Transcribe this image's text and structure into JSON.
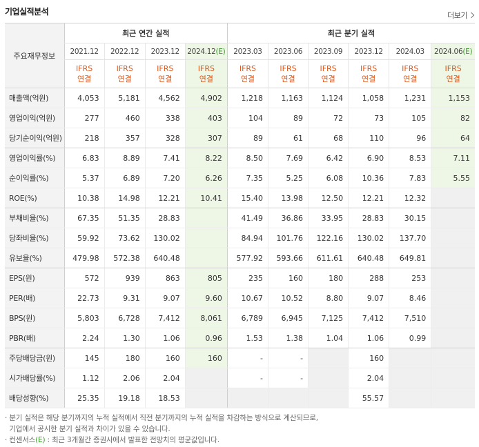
{
  "title": "기업실적분석",
  "more_label": "더보기",
  "row_header_label": "주요재무정보",
  "group_annual": "최근 연간 실적",
  "group_quarter": "최근 분기 실적",
  "periods": [
    "2021.12",
    "2022.12",
    "2023.12",
    "2024.12",
    "2023.03",
    "2023.06",
    "2023.09",
    "2023.12",
    "2024.03",
    "2024.06"
  ],
  "estimate_suffix": "(E)",
  "ifrs_line1": "IFRS",
  "ifrs_line2": "연결",
  "rows": [
    {
      "label": "매출액(억원)",
      "values": [
        "4,053",
        "5,181",
        "4,562",
        "4,902",
        "1,218",
        "1,163",
        "1,124",
        "1,058",
        "1,231",
        "1,153"
      ]
    },
    {
      "label": "영업이익(억원)",
      "values": [
        "277",
        "460",
        "338",
        "403",
        "104",
        "89",
        "72",
        "73",
        "105",
        "82"
      ]
    },
    {
      "label": "당기순이익(억원)",
      "values": [
        "218",
        "357",
        "328",
        "307",
        "89",
        "61",
        "68",
        "110",
        "96",
        "64"
      ]
    },
    {
      "label": "영업이익률(%)",
      "values": [
        "6.83",
        "8.89",
        "7.41",
        "8.22",
        "8.50",
        "7.69",
        "6.42",
        "6.90",
        "8.53",
        "7.11"
      ]
    },
    {
      "label": "순이익률(%)",
      "values": [
        "5.37",
        "6.89",
        "7.20",
        "6.26",
        "7.35",
        "5.25",
        "6.08",
        "10.36",
        "7.83",
        "5.55"
      ]
    },
    {
      "label": "ROE(%)",
      "values": [
        "10.38",
        "14.98",
        "12.21",
        "10.41",
        "15.40",
        "13.98",
        "12.50",
        "12.21",
        "12.32",
        ""
      ]
    },
    {
      "label": "부채비율(%)",
      "values": [
        "67.35",
        "51.35",
        "28.83",
        "",
        "41.49",
        "36.86",
        "33.95",
        "28.83",
        "30.15",
        ""
      ]
    },
    {
      "label": "당좌비율(%)",
      "values": [
        "59.92",
        "73.62",
        "130.02",
        "",
        "84.94",
        "101.76",
        "122.16",
        "130.02",
        "137.70",
        ""
      ]
    },
    {
      "label": "유보율(%)",
      "values": [
        "479.98",
        "572.38",
        "640.48",
        "",
        "577.92",
        "593.66",
        "611.61",
        "640.48",
        "649.81",
        ""
      ]
    },
    {
      "label": "EPS(원)",
      "values": [
        "572",
        "939",
        "863",
        "805",
        "235",
        "160",
        "180",
        "288",
        "253",
        ""
      ]
    },
    {
      "label": "PER(배)",
      "values": [
        "22.73",
        "9.31",
        "9.07",
        "9.60",
        "10.67",
        "10.52",
        "8.80",
        "9.07",
        "8.46",
        ""
      ]
    },
    {
      "label": "BPS(원)",
      "values": [
        "5,803",
        "6,728",
        "7,412",
        "8,061",
        "6,789",
        "6,945",
        "7,125",
        "7,412",
        "7,510",
        ""
      ]
    },
    {
      "label": "PBR(배)",
      "values": [
        "2.24",
        "1.30",
        "1.06",
        "0.96",
        "1.53",
        "1.38",
        "1.04",
        "1.06",
        "0.99",
        ""
      ]
    },
    {
      "label": "주당배당금(원)",
      "values": [
        "145",
        "180",
        "160",
        "160",
        "-",
        "-",
        "",
        "160",
        "",
        ""
      ]
    },
    {
      "label": "시가배당률(%)",
      "values": [
        "1.12",
        "2.06",
        "2.04",
        "",
        "-",
        "-",
        "",
        "2.04",
        "",
        ""
      ]
    },
    {
      "label": "배당성향(%)",
      "values": [
        "25.35",
        "19.18",
        "18.53",
        "",
        "",
        "",
        "",
        "55.57",
        "",
        ""
      ]
    }
  ],
  "notes": [
    "· 분기 실적은 해당 분기까지의 누적 실적에서 직전 분기까지의 누적 실적을 차감하는 방식으로 계산되므로,",
    "  기업에서 공시한 분기 실적과 차이가 있을 수 있습니다."
  ],
  "note3_prefix": "· 컨센서스",
  "note3_tag": "(E)",
  "note3_suffix": " : 최근 3개월간 증권사에서 발표한 전망치의 평균값입니다."
}
